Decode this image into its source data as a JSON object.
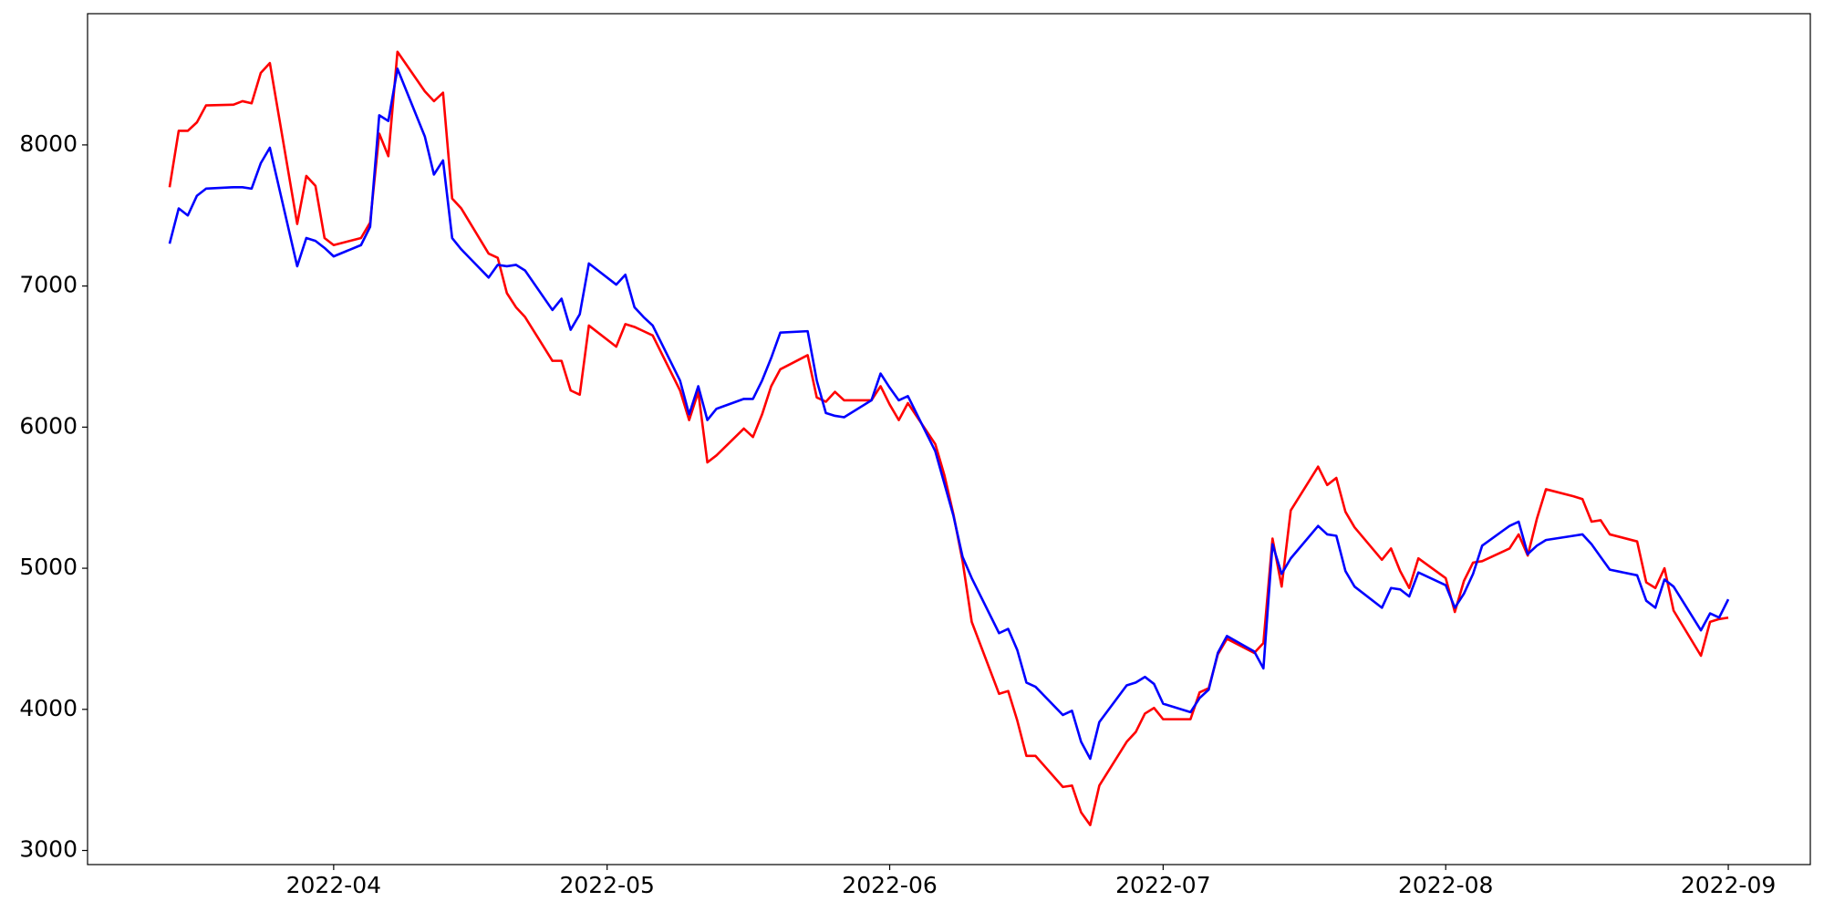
{
  "chart_data": {
    "type": "line",
    "x": [
      "2022-03-14",
      "2022-03-15",
      "2022-03-16",
      "2022-03-17",
      "2022-03-18",
      "2022-03-21",
      "2022-03-22",
      "2022-03-23",
      "2022-03-24",
      "2022-03-25",
      "2022-03-28",
      "2022-03-29",
      "2022-03-30",
      "2022-03-31",
      "2022-04-01",
      "2022-04-04",
      "2022-04-05",
      "2022-04-06",
      "2022-04-07",
      "2022-04-08",
      "2022-04-11",
      "2022-04-12",
      "2022-04-13",
      "2022-04-14",
      "2022-04-15",
      "2022-04-18",
      "2022-04-19",
      "2022-04-20",
      "2022-04-21",
      "2022-04-22",
      "2022-04-25",
      "2022-04-26",
      "2022-04-27",
      "2022-04-28",
      "2022-04-29",
      "2022-05-02",
      "2022-05-03",
      "2022-05-04",
      "2022-05-05",
      "2022-05-06",
      "2022-05-09",
      "2022-05-10",
      "2022-05-11",
      "2022-05-12",
      "2022-05-13",
      "2022-05-16",
      "2022-05-17",
      "2022-05-18",
      "2022-05-19",
      "2022-05-20",
      "2022-05-23",
      "2022-05-24",
      "2022-05-25",
      "2022-05-26",
      "2022-05-27",
      "2022-05-30",
      "2022-05-31",
      "2022-06-01",
      "2022-06-02",
      "2022-06-03",
      "2022-06-06",
      "2022-06-07",
      "2022-06-08",
      "2022-06-09",
      "2022-06-10",
      "2022-06-13",
      "2022-06-14",
      "2022-06-15",
      "2022-06-16",
      "2022-06-17",
      "2022-06-20",
      "2022-06-21",
      "2022-06-22",
      "2022-06-23",
      "2022-06-24",
      "2022-06-27",
      "2022-06-28",
      "2022-06-29",
      "2022-06-30",
      "2022-07-01",
      "2022-07-04",
      "2022-07-05",
      "2022-07-06",
      "2022-07-07",
      "2022-07-08",
      "2022-07-11",
      "2022-07-12",
      "2022-07-13",
      "2022-07-14",
      "2022-07-15",
      "2022-07-18",
      "2022-07-19",
      "2022-07-20",
      "2022-07-21",
      "2022-07-22",
      "2022-07-25",
      "2022-07-26",
      "2022-07-27",
      "2022-07-28",
      "2022-07-29",
      "2022-08-01",
      "2022-08-02",
      "2022-08-03",
      "2022-08-04",
      "2022-08-05",
      "2022-08-08",
      "2022-08-09",
      "2022-08-10",
      "2022-08-11",
      "2022-08-12",
      "2022-08-15",
      "2022-08-16",
      "2022-08-17",
      "2022-08-18",
      "2022-08-19",
      "2022-08-22",
      "2022-08-23",
      "2022-08-24",
      "2022-08-25",
      "2022-08-26",
      "2022-08-29",
      "2022-08-30",
      "2022-08-31",
      "2022-09-01"
    ],
    "series": [
      {
        "color": "#ff0000",
        "values": [
          7700,
          8100,
          8100,
          8160,
          8280,
          8285,
          8310,
          8295,
          8510,
          8580,
          7440,
          7780,
          7710,
          7340,
          7290,
          7340,
          7450,
          8080,
          7920,
          8660,
          8380,
          8310,
          8370,
          7620,
          7550,
          7230,
          7200,
          6950,
          6850,
          6780,
          6470,
          6470,
          6260,
          6230,
          6720,
          6570,
          6730,
          6710,
          6680,
          6650,
          6260,
          6050,
          6250,
          5750,
          5800,
          5990,
          5930,
          6090,
          6290,
          6410,
          6510,
          6210,
          6180,
          6250,
          6190,
          6190,
          6290,
          6160,
          6050,
          6170,
          5880,
          5660,
          5380,
          5050,
          4620,
          4110,
          4130,
          3920,
          3670,
          3670,
          3450,
          3460,
          3270,
          3180,
          3460,
          3770,
          3840,
          3970,
          4010,
          3930,
          3930,
          4120,
          4150,
          4390,
          4500,
          4400,
          4470,
          5210,
          4870,
          5410,
          5720,
          5590,
          5640,
          5400,
          5290,
          5060,
          5140,
          4980,
          4860,
          5070,
          4930,
          4690,
          4910,
          5040,
          5050,
          5140,
          5240,
          5090,
          5350,
          5560,
          5510,
          5490,
          5330,
          5340,
          5240,
          5190,
          4900,
          4860,
          5000,
          4700,
          4380,
          4620,
          4640,
          4650
        ]
      },
      {
        "color": "#0000ff",
        "values": [
          7300,
          7550,
          7500,
          7640,
          7690,
          7700,
          7700,
          7690,
          7870,
          7980,
          7140,
          7340,
          7320,
          7270,
          7210,
          7290,
          7420,
          8210,
          8170,
          8540,
          8060,
          7790,
          7890,
          7340,
          7260,
          7060,
          7150,
          7140,
          7150,
          7110,
          6830,
          6910,
          6690,
          6800,
          7160,
          7010,
          7080,
          6850,
          6780,
          6720,
          6330,
          6090,
          6290,
          6050,
          6130,
          6200,
          6200,
          6330,
          6490,
          6670,
          6680,
          6330,
          6100,
          6080,
          6070,
          6190,
          6380,
          6280,
          6190,
          6220,
          5830,
          5600,
          5370,
          5080,
          4930,
          4540,
          4570,
          4420,
          4190,
          4160,
          3960,
          3990,
          3770,
          3650,
          3910,
          4170,
          4190,
          4230,
          4180,
          4040,
          3980,
          4080,
          4140,
          4400,
          4520,
          4410,
          4290,
          5170,
          4960,
          5070,
          5300,
          5240,
          5230,
          4980,
          4870,
          4720,
          4860,
          4850,
          4800,
          4970,
          4880,
          4720,
          4820,
          4960,
          5160,
          5300,
          5330,
          5100,
          5160,
          5200,
          5230,
          5240,
          5170,
          5080,
          4990,
          4950,
          4770,
          4720,
          4920,
          4870,
          4560,
          4680,
          4650,
          4780
        ]
      }
    ],
    "xlim": [
      "2022-03-05",
      "2022-09-10"
    ],
    "xticks": [
      {
        "value": "2022-04-01",
        "label": "2022-04"
      },
      {
        "value": "2022-05-01",
        "label": "2022-05"
      },
      {
        "value": "2022-06-01",
        "label": "2022-06"
      },
      {
        "value": "2022-07-01",
        "label": "2022-07"
      },
      {
        "value": "2022-08-01",
        "label": "2022-08"
      },
      {
        "value": "2022-09-01",
        "label": "2022-09"
      }
    ],
    "ylim": [
      2900,
      8930
    ],
    "yticks": [
      3000,
      4000,
      5000,
      6000,
      7000,
      8000
    ]
  }
}
